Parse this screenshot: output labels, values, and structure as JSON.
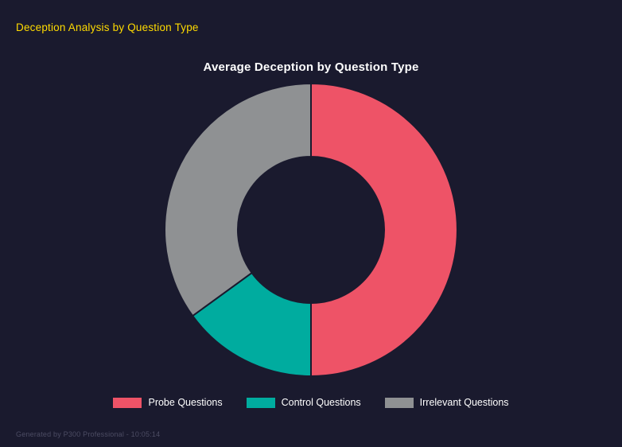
{
  "header": {
    "title": "Deception Analysis by Question Type"
  },
  "chart_data": {
    "type": "pie",
    "variant": "donut",
    "title": "Average Deception by Question Type",
    "labels": [
      "Probe Questions",
      "Control Questions",
      "Irrelevant Questions"
    ],
    "values": [
      50,
      15,
      35
    ],
    "colors": [
      "#ee5367",
      "#00ac9f",
      "#8f9193"
    ],
    "legend_position": "bottom",
    "start_angle_deg": -90,
    "direction": "clockwise",
    "inner_radius_ratio": 0.5
  },
  "footer": {
    "text": "Generated by P300 Professional - 10:05:14"
  },
  "colors": {
    "background": "#1a1a2e",
    "header_text": "#ffdb00",
    "chart_title_text": "#ffffff",
    "legend_text": "#ffffff",
    "footer_text": "#4c4c63"
  }
}
